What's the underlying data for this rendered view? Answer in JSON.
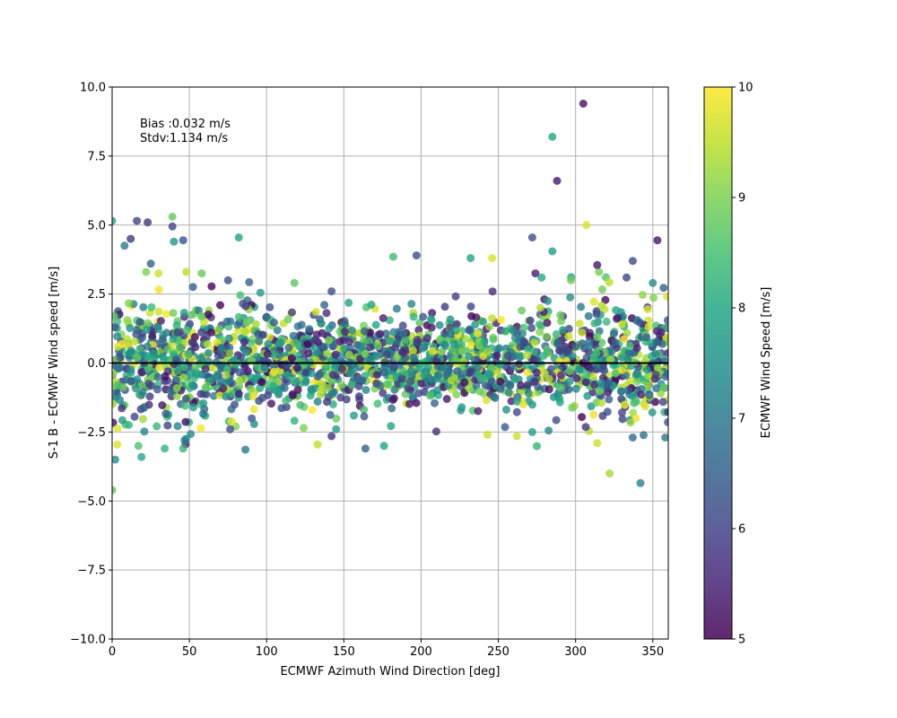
{
  "chart_data": {
    "type": "scatter",
    "title": "",
    "xlabel": "ECMWF Azimuth Wind Direction [deg]",
    "ylabel": "S-1 B - ECMWF Wind speed [m/s]",
    "xlim": [
      0,
      360
    ],
    "ylim": [
      -10,
      10
    ],
    "xticks": [
      "0",
      "50",
      "100",
      "150",
      "200",
      "250",
      "300",
      "350"
    ],
    "yticks": [
      "−10.0",
      "−7.5",
      "−5.0",
      "−2.5",
      "0.0",
      "2.5",
      "5.0",
      "7.5",
      "10.0"
    ],
    "grid": true,
    "reference_line_y": 0,
    "annotations": [
      "Bias :0.032 m/s",
      "Stdv:1.134 m/s"
    ],
    "colorbar": {
      "label": "ECMWF Wind Speed [m/s]",
      "range": [
        5,
        10
      ],
      "ticks": [
        "5",
        "6",
        "7",
        "8",
        "9",
        "10"
      ],
      "colormap": "viridis"
    },
    "marker_alpha": 0.8,
    "cloud": {
      "count": 2000,
      "x_range": [
        0,
        360
      ],
      "mean_bias": 0.032,
      "stdv": 1.134,
      "color_value_range": [
        5,
        10
      ]
    },
    "points": [
      {
        "x": 305,
        "y": 9.4,
        "c": 5.2
      },
      {
        "x": 285,
        "y": 8.2,
        "c": 8.0
      },
      {
        "x": 288,
        "y": 6.6,
        "c": 5.3
      },
      {
        "x": 307,
        "y": 5.0,
        "c": 9.7
      },
      {
        "x": 0,
        "y": 5.15,
        "c": 7.8
      },
      {
        "x": 16,
        "y": 5.15,
        "c": 6.0
      },
      {
        "x": 23,
        "y": 5.1,
        "c": 5.8
      },
      {
        "x": 39,
        "y": 5.3,
        "c": 8.8
      },
      {
        "x": 39,
        "y": 4.95,
        "c": 6.0
      },
      {
        "x": 12,
        "y": 4.5,
        "c": 5.8
      },
      {
        "x": 8,
        "y": 4.25,
        "c": 7.0
      },
      {
        "x": 40,
        "y": 4.4,
        "c": 7.6
      },
      {
        "x": 46,
        "y": 4.45,
        "c": 6.3
      },
      {
        "x": 82,
        "y": 4.55,
        "c": 7.9
      },
      {
        "x": 272,
        "y": 4.55,
        "c": 6.2
      },
      {
        "x": 353,
        "y": 4.45,
        "c": 5.3
      },
      {
        "x": 285,
        "y": 4.05,
        "c": 7.8
      },
      {
        "x": 182,
        "y": 3.85,
        "c": 8.4
      },
      {
        "x": 197,
        "y": 3.9,
        "c": 6.2
      },
      {
        "x": 232,
        "y": 3.8,
        "c": 7.9
      },
      {
        "x": 246,
        "y": 3.8,
        "c": 9.7
      },
      {
        "x": 337,
        "y": 3.7,
        "c": 6.1
      },
      {
        "x": 314,
        "y": 3.55,
        "c": 5.3
      },
      {
        "x": 25,
        "y": 3.6,
        "c": 6.6
      },
      {
        "x": 0,
        "y": -4.6,
        "c": 8.7
      },
      {
        "x": 2,
        "y": -3.5,
        "c": 7.4
      },
      {
        "x": 17,
        "y": -3.0,
        "c": 8.6
      },
      {
        "x": 19,
        "y": -3.4,
        "c": 8.0
      },
      {
        "x": 34,
        "y": -3.1,
        "c": 8.2
      },
      {
        "x": 46,
        "y": -3.1,
        "c": 8.3
      },
      {
        "x": 47,
        "y": -2.8,
        "c": 7.2
      },
      {
        "x": 164,
        "y": -3.1,
        "c": 6.5
      },
      {
        "x": 176,
        "y": -3.0,
        "c": 7.9
      },
      {
        "x": 133,
        "y": -2.95,
        "c": 9.5
      },
      {
        "x": 142,
        "y": -2.65,
        "c": 5.7
      },
      {
        "x": 145,
        "y": -2.4,
        "c": 7.7
      },
      {
        "x": 322,
        "y": -4.0,
        "c": 9.3
      },
      {
        "x": 342,
        "y": -4.35,
        "c": 7.2
      },
      {
        "x": 314,
        "y": -2.9,
        "c": 9.6
      },
      {
        "x": 337,
        "y": -2.7,
        "c": 6.7
      },
      {
        "x": 358,
        "y": -2.7,
        "c": 7.0
      },
      {
        "x": 339,
        "y": -2.0,
        "c": 9.9
      },
      {
        "x": 272,
        "y": -2.5,
        "c": 7.8
      },
      {
        "x": 262,
        "y": -2.65,
        "c": 9.6
      },
      {
        "x": 243,
        "y": -2.6,
        "c": 9.6
      },
      {
        "x": 96,
        "y": 2.55,
        "c": 7.7
      },
      {
        "x": 142,
        "y": 2.6,
        "c": 6.2
      },
      {
        "x": 118,
        "y": 2.9,
        "c": 8.7
      },
      {
        "x": 75,
        "y": 3.0,
        "c": 6.2
      },
      {
        "x": 58,
        "y": 3.25,
        "c": 8.8
      },
      {
        "x": 48,
        "y": 3.3,
        "c": 9.5
      },
      {
        "x": 30,
        "y": 3.25,
        "c": 9.6
      },
      {
        "x": 22,
        "y": 3.3,
        "c": 9.0
      },
      {
        "x": 297,
        "y": 3.0,
        "c": 8.9
      },
      {
        "x": 333,
        "y": 3.1,
        "c": 6.1
      },
      {
        "x": 350,
        "y": 2.9,
        "c": 7.4
      },
      {
        "x": 274,
        "y": 3.25,
        "c": 5.4
      },
      {
        "x": 278,
        "y": 3.1,
        "c": 8.0
      }
    ]
  }
}
